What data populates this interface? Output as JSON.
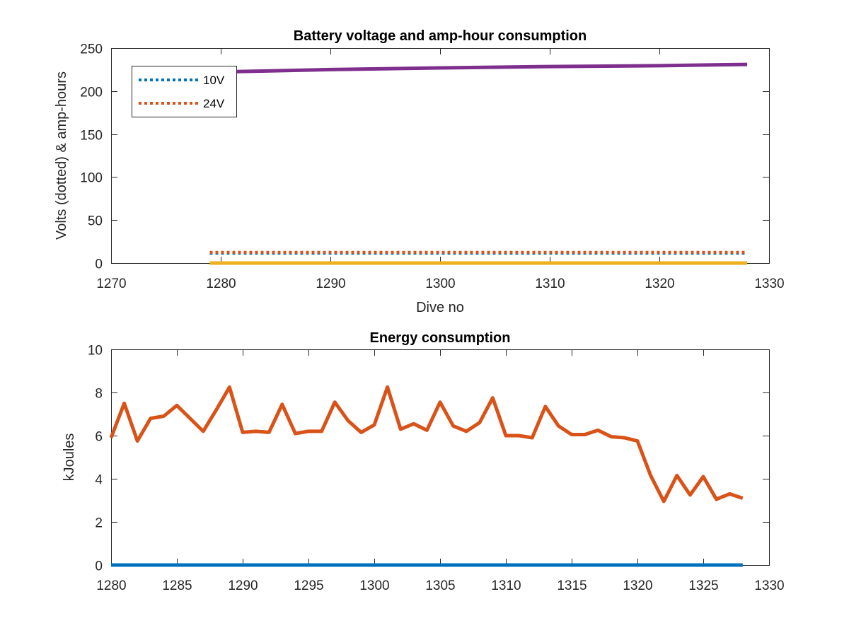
{
  "chart_data": [
    {
      "type": "line",
      "title": "Battery voltage and amp-hour consumption",
      "xlabel": "Dive no",
      "ylabel": "Volts (dotted) & amp-hours",
      "xlim": [
        1270,
        1330
      ],
      "ylim": [
        0,
        250
      ],
      "xticks": [
        1270,
        1280,
        1290,
        1300,
        1310,
        1320,
        1330
      ],
      "yticks": [
        0,
        50,
        100,
        150,
        200,
        250
      ],
      "grid": false,
      "legend_position": "top-left",
      "series": [
        {
          "name": "10V",
          "style": "dotted",
          "color": "#0072bd",
          "x": [
            1279,
            1328
          ],
          "y": [
            11.5,
            11.5
          ]
        },
        {
          "name": "24V",
          "style": "dotted",
          "color": "#d95319",
          "x": [
            1279,
            1328
          ],
          "y": [
            12.5,
            12.5
          ]
        },
        {
          "style": "solid",
          "color": "#edb120",
          "x": [
            1279,
            1328
          ],
          "y": [
            0,
            0
          ]
        },
        {
          "style": "solid",
          "color": "#7e2f8e",
          "x": [
            1279,
            1290,
            1300,
            1310,
            1320,
            1328
          ],
          "y": [
            222,
            225,
            227,
            228.5,
            229.5,
            231
          ]
        }
      ]
    },
    {
      "type": "line",
      "title": "Energy consumption",
      "xlabel": "",
      "ylabel": "kJoules",
      "xlim": [
        1280,
        1330
      ],
      "ylim": [
        0,
        10
      ],
      "xticks": [
        1280,
        1285,
        1290,
        1295,
        1300,
        1305,
        1310,
        1315,
        1320,
        1325,
        1330
      ],
      "yticks": [
        0,
        2,
        4,
        6,
        8,
        10
      ],
      "grid": false,
      "series": [
        {
          "style": "solid",
          "color": "#0072bd",
          "x": [
            1280,
            1328
          ],
          "y": [
            0,
            0
          ]
        },
        {
          "style": "solid",
          "color": "#d95319",
          "x": [
            1280,
            1281,
            1282,
            1283,
            1284,
            1285,
            1286,
            1287,
            1288,
            1289,
            1290,
            1291,
            1292,
            1293,
            1294,
            1295,
            1296,
            1297,
            1298,
            1299,
            1300,
            1301,
            1302,
            1303,
            1304,
            1305,
            1306,
            1307,
            1308,
            1309,
            1310,
            1311,
            1312,
            1313,
            1314,
            1315,
            1316,
            1317,
            1318,
            1319,
            1320,
            1321,
            1322,
            1323,
            1324,
            1325,
            1326,
            1327,
            1328
          ],
          "y": [
            5.9,
            7.5,
            5.75,
            6.8,
            6.9,
            7.4,
            6.8,
            6.2,
            7.2,
            8.25,
            6.15,
            6.2,
            6.15,
            7.45,
            6.1,
            6.2,
            6.2,
            7.55,
            6.7,
            6.15,
            6.5,
            8.25,
            6.3,
            6.55,
            6.25,
            7.55,
            6.45,
            6.2,
            6.6,
            7.75,
            6.0,
            6.0,
            5.9,
            7.35,
            6.45,
            6.05,
            6.05,
            6.25,
            5.95,
            5.9,
            5.75,
            4.15,
            2.95,
            4.15,
            3.25,
            4.1,
            3.05,
            3.3,
            3.1
          ]
        }
      ]
    }
  ]
}
